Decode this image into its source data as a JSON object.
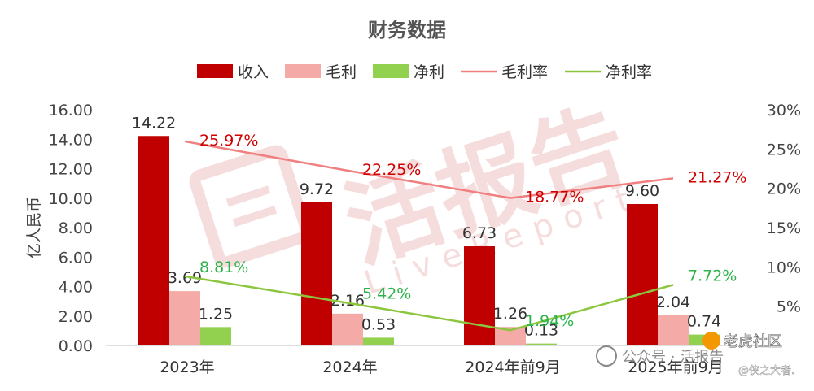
{
  "chart_data": {
    "type": "bar",
    "title": "财务数据",
    "categories": [
      "2023年",
      "2024年",
      "2024年前9月",
      "2025年前9月"
    ],
    "ylabel": "亿人民币",
    "ylim": [
      0,
      16
    ],
    "y_ticks": [
      "0.00",
      "2.00",
      "4.00",
      "6.00",
      "8.00",
      "10.00",
      "12.00",
      "14.00",
      "16.00"
    ],
    "y2lim": [
      0,
      30
    ],
    "y2_ticks": [
      "",
      "5%",
      "10%",
      "15%",
      "20%",
      "25%",
      "30%"
    ],
    "grid": false,
    "legend_position": "top",
    "series": [
      {
        "name": "收入",
        "kind": "bar",
        "axis": "left",
        "color": "#c00000",
        "values": [
          14.22,
          9.72,
          6.73,
          9.6
        ],
        "labels": [
          "14.22",
          "9.72",
          "6.73",
          "9.60"
        ]
      },
      {
        "name": "毛利",
        "kind": "bar",
        "axis": "left",
        "color": "#f4aaa6",
        "values": [
          3.69,
          2.16,
          1.26,
          2.04
        ],
        "labels": [
          "3.69",
          "2.16",
          "1.26",
          "2.04"
        ]
      },
      {
        "name": "净利",
        "kind": "bar",
        "axis": "left",
        "color": "#92d050",
        "values": [
          1.25,
          0.53,
          0.13,
          0.74
        ],
        "labels": [
          "1.25",
          "0.53",
          "0.13",
          "0.74"
        ]
      },
      {
        "name": "毛利率",
        "kind": "line",
        "axis": "right",
        "color": "#f08080",
        "label_color": "#d00000",
        "values": [
          25.97,
          22.25,
          18.77,
          21.27
        ],
        "labels": [
          "25.97%",
          "22.25%",
          "18.77%",
          "21.27%"
        ]
      },
      {
        "name": "净利率",
        "kind": "line",
        "axis": "right",
        "color": "#8cc63f",
        "label_color": "#2db34a",
        "values": [
          8.81,
          5.42,
          1.94,
          7.72
        ],
        "labels": [
          "8.81%",
          "5.42%",
          "1.94%",
          "7.72%"
        ]
      }
    ]
  },
  "watermark": {
    "text": "活报告",
    "subtext": "LiveReport"
  },
  "footer": {
    "wechat": "公众号 · 活报告",
    "community": "老虎社区",
    "author": "@侠之大者."
  }
}
